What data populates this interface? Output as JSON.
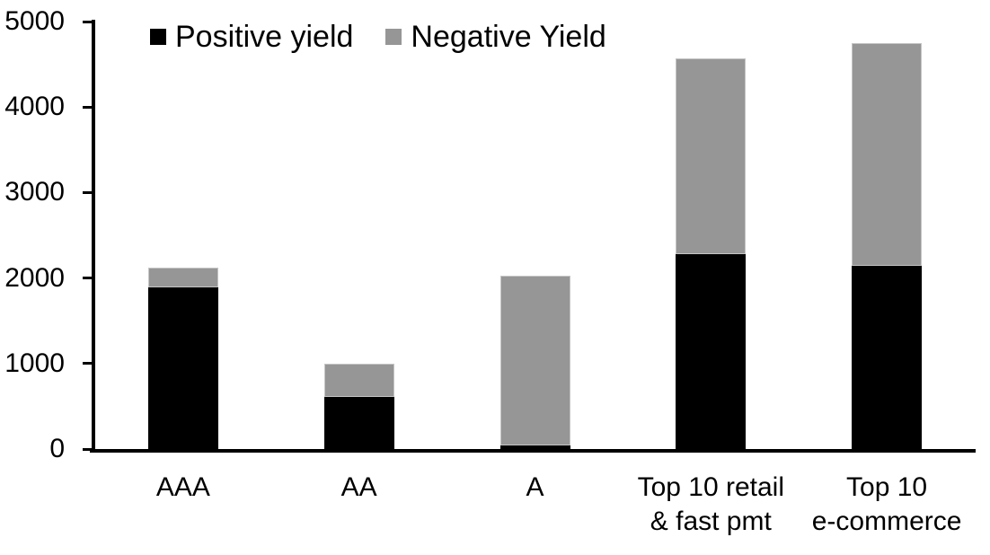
{
  "chart_data": {
    "type": "bar",
    "stacked": true,
    "title": "",
    "xlabel": "",
    "ylabel": "",
    "categories": [
      "AAA",
      "AA",
      "A",
      "Top 10 retail\n& fast pmt",
      "Top 10\ne-commerce"
    ],
    "series": [
      {
        "name": "Positive yield",
        "color": "#000000",
        "values": [
          1890,
          610,
          40,
          2280,
          2140
        ]
      },
      {
        "name": "Negative Yield",
        "color": "#969696",
        "values": [
          230,
          390,
          1990,
          2290,
          2610
        ]
      }
    ],
    "totals": [
      2120,
      1000,
      2030,
      4570,
      4750
    ],
    "ylim": [
      0,
      5000
    ],
    "yticks": [
      0,
      1000,
      2000,
      3000,
      4000,
      5000
    ],
    "grid": false,
    "legend_position": "top-left",
    "axis_color": "#000000",
    "background_color": "#ffffff",
    "text_color": "#000000"
  }
}
